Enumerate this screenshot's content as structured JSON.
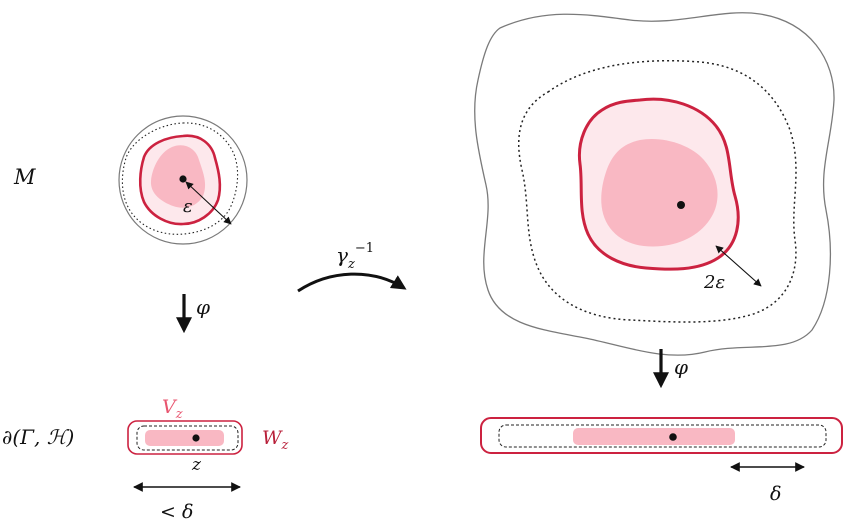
{
  "labels": {
    "manifold": "M",
    "boundary": "∂(Γ, ℋ)",
    "epsilon": "ε",
    "two_epsilon": "2ε",
    "phi_left": "φ",
    "phi_right": "φ",
    "gamma_base": "γ",
    "gamma_sub": "z",
    "gamma_sup": "−1",
    "v_base": "V",
    "v_sub": "z",
    "w_base": "W",
    "w_sub": "z",
    "z_point": "z",
    "less_delta": "< δ",
    "delta": "δ"
  },
  "colors": {
    "crimson": "#cc2240",
    "light_pink": "#fde8ec",
    "pink_fill": "#f9b8c3",
    "v_label": "#e8556f",
    "w_label": "#b8203a",
    "gray_outline": "#7a7a7a"
  }
}
